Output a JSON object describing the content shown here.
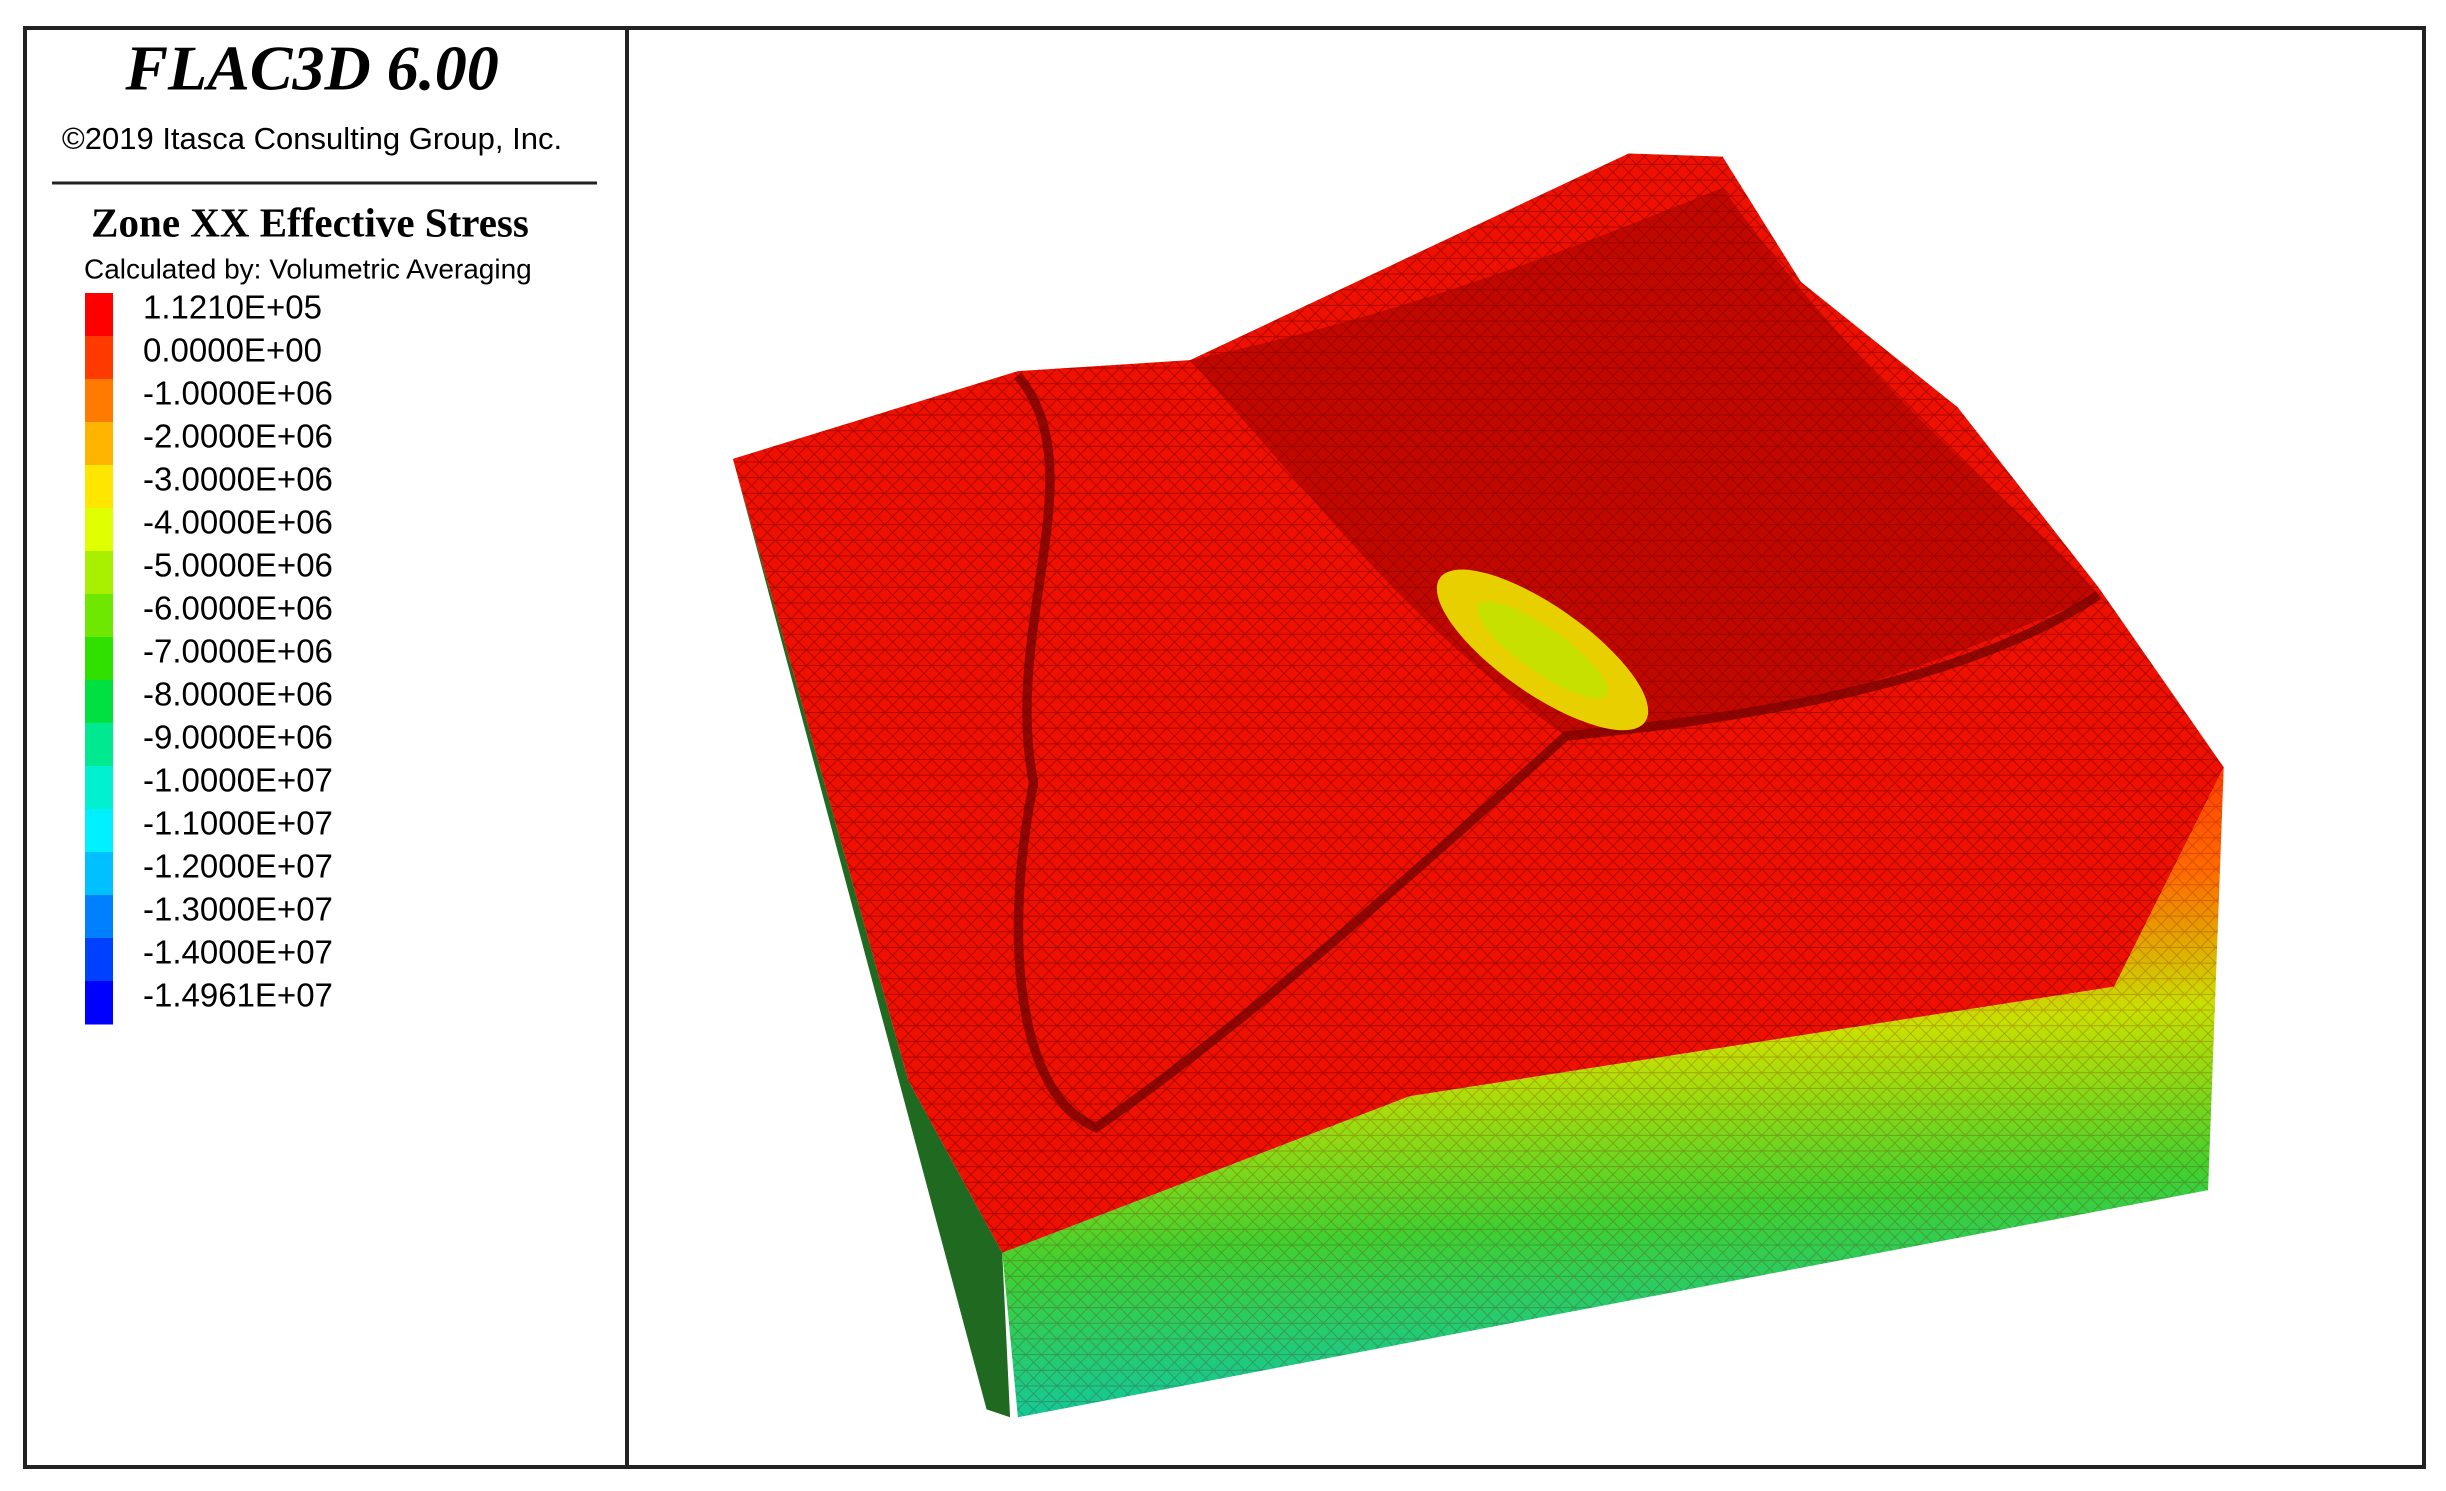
{
  "header": {
    "title": "FLAC3D 6.00",
    "copyright": "©2019 Itasca Consulting Group, Inc."
  },
  "legend": {
    "title": "Zone XX Effective Stress",
    "subtitle": "Calculated by: Volumetric Averaging",
    "entries": [
      {
        "label": "1.1210E+05",
        "color": "#ff0000"
      },
      {
        "label": "0.0000E+00",
        "color": "#ff3a00"
      },
      {
        "label": "-1.0000E+06",
        "color": "#ff7a00"
      },
      {
        "label": "-2.0000E+06",
        "color": "#ffb400"
      },
      {
        "label": "-3.0000E+06",
        "color": "#ffe600"
      },
      {
        "label": "-4.0000E+06",
        "color": "#e0ff00"
      },
      {
        "label": "-5.0000E+06",
        "color": "#a8f000"
      },
      {
        "label": "-6.0000E+06",
        "color": "#6ee800"
      },
      {
        "label": "-7.0000E+06",
        "color": "#30e000"
      },
      {
        "label": "-8.0000E+06",
        "color": "#00e040"
      },
      {
        "label": "-9.0000E+06",
        "color": "#00e890"
      },
      {
        "label": "-1.0000E+07",
        "color": "#00f0d0"
      },
      {
        "label": "-1.1000E+07",
        "color": "#00f0ff"
      },
      {
        "label": "-1.2000E+07",
        "color": "#00c0ff"
      },
      {
        "label": "-1.3000E+07",
        "color": "#0080ff"
      },
      {
        "label": "-1.4000E+07",
        "color": "#0040ff"
      },
      {
        "label": "-1.4961E+07",
        "color": "#0000ff"
      }
    ]
  }
}
